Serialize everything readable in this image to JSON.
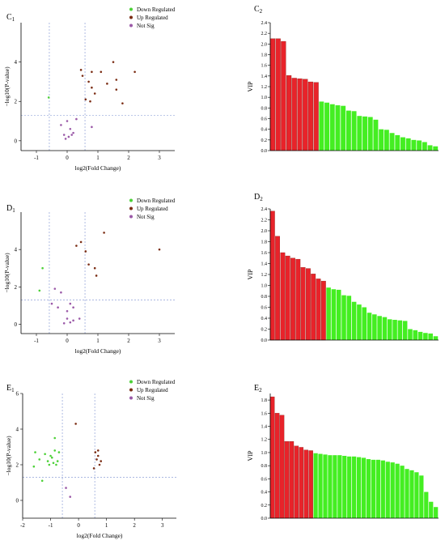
{
  "colors": {
    "down": "#4cd137",
    "up": "#7b2d14",
    "notsig": "#9b5aa8",
    "bar_red": "#e8232a",
    "bar_green": "#44ee22",
    "bar_edge": "#7a1a10",
    "axis": "#000000",
    "guide": "#7a8fd0"
  },
  "chart_data": [
    {
      "panel": "C1",
      "type": "scatter",
      "title": "C1",
      "xlabel": "log2(Fold Change)",
      "ylabel": "−log10(P-value)",
      "xlim": [
        -1.5,
        3.5
      ],
      "ylim": [
        -0.5,
        6
      ],
      "xticks": [
        "-1",
        "0",
        "1",
        "2",
        "3"
      ],
      "yticks": [
        "0",
        "2",
        "4"
      ],
      "thresholds": {
        "x": [
          -0.58,
          0.58
        ],
        "y": 1.3
      },
      "legend": [
        "Down Regulated",
        "Up Regulated",
        "Not Sig"
      ],
      "series": [
        {
          "name": "Down Regulated",
          "points": [
            [
              -0.6,
              2.2
            ]
          ]
        },
        {
          "name": "Up Regulated",
          "points": [
            [
              0.45,
              3.6
            ],
            [
              0.5,
              3.3
            ],
            [
              0.7,
              3.0
            ],
            [
              0.8,
              3.5
            ],
            [
              0.8,
              2.7
            ],
            [
              0.9,
              2.4
            ],
            [
              1.1,
              3.5
            ],
            [
              1.3,
              2.9
            ],
            [
              1.5,
              4.0
            ],
            [
              1.6,
              3.1
            ],
            [
              1.6,
              2.6
            ],
            [
              0.6,
              2.1
            ],
            [
              2.2,
              3.5
            ],
            [
              1.8,
              1.9
            ],
            [
              0.75,
              2.0
            ]
          ]
        },
        {
          "name": "Not Sig",
          "points": [
            [
              -0.2,
              0.8
            ],
            [
              0.0,
              1.0
            ],
            [
              0.1,
              0.6
            ],
            [
              -0.1,
              0.3
            ],
            [
              0.05,
              0.2
            ],
            [
              -0.05,
              0.1
            ],
            [
              0.15,
              0.3
            ],
            [
              0.3,
              1.1
            ],
            [
              0.8,
              0.7
            ],
            [
              0.2,
              0.4
            ]
          ]
        }
      ]
    },
    {
      "panel": "C2",
      "type": "bar",
      "title": "C2",
      "ylabel": "VIP",
      "ylim": [
        0,
        2.4
      ],
      "yticks": [
        "0.0",
        "0.2",
        "0.4",
        "0.6",
        "0.8",
        "1.0",
        "1.2",
        "1.4",
        "1.6",
        "1.8",
        "2.0",
        "2.2",
        "2.4"
      ],
      "values": [
        2.1,
        2.1,
        2.05,
        1.41,
        1.36,
        1.35,
        1.34,
        1.29,
        1.28,
        0.92,
        0.9,
        0.87,
        0.85,
        0.84,
        0.75,
        0.74,
        0.65,
        0.64,
        0.63,
        0.58,
        0.4,
        0.39,
        0.33,
        0.29,
        0.25,
        0.23,
        0.2,
        0.19,
        0.16,
        0.1,
        0.08
      ],
      "red_count": 9
    },
    {
      "panel": "D1",
      "type": "scatter",
      "title": "D1",
      "xlabel": "log2(Fold Change)",
      "ylabel": "−log10(P-value)",
      "xlim": [
        -1.5,
        3.5
      ],
      "ylim": [
        -0.5,
        6
      ],
      "xticks": [
        "-1",
        "0",
        "1",
        "2",
        "3"
      ],
      "yticks": [
        "0",
        "2",
        "4"
      ],
      "thresholds": {
        "x": [
          -0.58,
          0.58
        ],
        "y": 1.3
      },
      "legend": [
        "Down Regulated",
        "Up Regulated",
        "Not Sig"
      ],
      "series": [
        {
          "name": "Down Regulated",
          "points": [
            [
              -0.8,
              3.0
            ],
            [
              -0.9,
              1.8
            ]
          ]
        },
        {
          "name": "Up Regulated",
          "points": [
            [
              0.3,
              4.2
            ],
            [
              0.45,
              4.4
            ],
            [
              0.6,
              3.9
            ],
            [
              0.7,
              3.2
            ],
            [
              0.9,
              3.0
            ],
            [
              1.2,
              4.9
            ],
            [
              3.0,
              4.0
            ],
            [
              0.95,
              2.6
            ]
          ]
        },
        {
          "name": "Not Sig",
          "points": [
            [
              -0.4,
              1.9
            ],
            [
              -0.2,
              1.7
            ],
            [
              0.0,
              0.7
            ],
            [
              0.1,
              0.1
            ],
            [
              -0.1,
              0.05
            ],
            [
              0.2,
              0.2
            ],
            [
              -0.3,
              0.9
            ],
            [
              0.1,
              1.1
            ],
            [
              0.4,
              0.3
            ],
            [
              0.2,
              0.9
            ],
            [
              -0.5,
              1.1
            ],
            [
              0.0,
              0.3
            ]
          ]
        }
      ]
    },
    {
      "panel": "D2",
      "type": "bar",
      "title": "D2",
      "ylabel": "VIP",
      "ylim": [
        0,
        2.4
      ],
      "yticks": [
        "0.0",
        "0.2",
        "0.4",
        "0.6",
        "0.8",
        "1.0",
        "1.2",
        "1.4",
        "1.6",
        "1.8",
        "2.0",
        "2.2",
        "2.4"
      ],
      "values": [
        2.36,
        1.9,
        1.6,
        1.54,
        1.5,
        1.48,
        1.33,
        1.31,
        1.21,
        1.12,
        1.08,
        0.96,
        0.93,
        0.92,
        0.82,
        0.81,
        0.7,
        0.65,
        0.6,
        0.5,
        0.47,
        0.44,
        0.42,
        0.38,
        0.37,
        0.36,
        0.35,
        0.2,
        0.18,
        0.15,
        0.13,
        0.12,
        0.07
      ],
      "red_count": 11
    },
    {
      "panel": "E1",
      "type": "scatter",
      "title": "E1",
      "xlabel": "log2(Fold Change)",
      "ylabel": "−log10(P-value)",
      "xlim": [
        -2,
        3.5
      ],
      "ylim": [
        -1,
        6
      ],
      "xticks": [
        "-2",
        "-1",
        "0",
        "1",
        "2",
        "3"
      ],
      "yticks": [
        "0",
        "2",
        "4",
        "6"
      ],
      "thresholds": {
        "x": [
          -0.58,
          0.58
        ],
        "y": 1.3
      },
      "legend": [
        "Down Regulated",
        "Up Regulated",
        "Not Sig"
      ],
      "series": [
        {
          "name": "Down Regulated",
          "points": [
            [
              -1.55,
              2.7
            ],
            [
              -1.4,
              2.3
            ],
            [
              -1.2,
              2.6
            ],
            [
              -1.1,
              2.2
            ],
            [
              -1.05,
              2.0
            ],
            [
              -0.95,
              2.4
            ],
            [
              -0.9,
              2.1
            ],
            [
              -0.85,
              3.5
            ],
            [
              -0.85,
              2.8
            ],
            [
              -1.0,
              2.5
            ],
            [
              -0.75,
              2.2
            ],
            [
              -0.8,
              2.0
            ],
            [
              -1.6,
              1.9
            ],
            [
              -1.3,
              1.1
            ],
            [
              -0.7,
              2.7
            ]
          ]
        },
        {
          "name": "Up Regulated",
          "points": [
            [
              0.6,
              2.7
            ],
            [
              0.65,
              2.3
            ],
            [
              0.7,
              2.5
            ],
            [
              0.75,
              2.0
            ],
            [
              0.8,
              2.2
            ],
            [
              0.55,
              1.8
            ],
            [
              0.7,
              2.8
            ],
            [
              -0.1,
              4.3
            ]
          ]
        },
        {
          "name": "Not Sig",
          "points": [
            [
              -0.45,
              0.7
            ],
            [
              -0.3,
              0.2
            ]
          ]
        }
      ]
    },
    {
      "panel": "E2",
      "type": "bar",
      "title": "E2",
      "ylabel": "VIP",
      "ylim": [
        0,
        1.9
      ],
      "yticks": [
        "0.0",
        "0.2",
        "0.4",
        "0.6",
        "0.8",
        "1.0",
        "1.2",
        "1.4",
        "1.6",
        "1.8"
      ],
      "values": [
        1.85,
        1.6,
        1.57,
        1.17,
        1.17,
        1.1,
        1.08,
        1.04,
        1.03,
        0.99,
        0.98,
        0.97,
        0.96,
        0.96,
        0.96,
        0.95,
        0.94,
        0.94,
        0.93,
        0.92,
        0.9,
        0.89,
        0.89,
        0.88,
        0.86,
        0.85,
        0.83,
        0.8,
        0.75,
        0.73,
        0.7,
        0.65,
        0.4,
        0.25,
        0.17
      ],
      "red_count": 9
    }
  ]
}
